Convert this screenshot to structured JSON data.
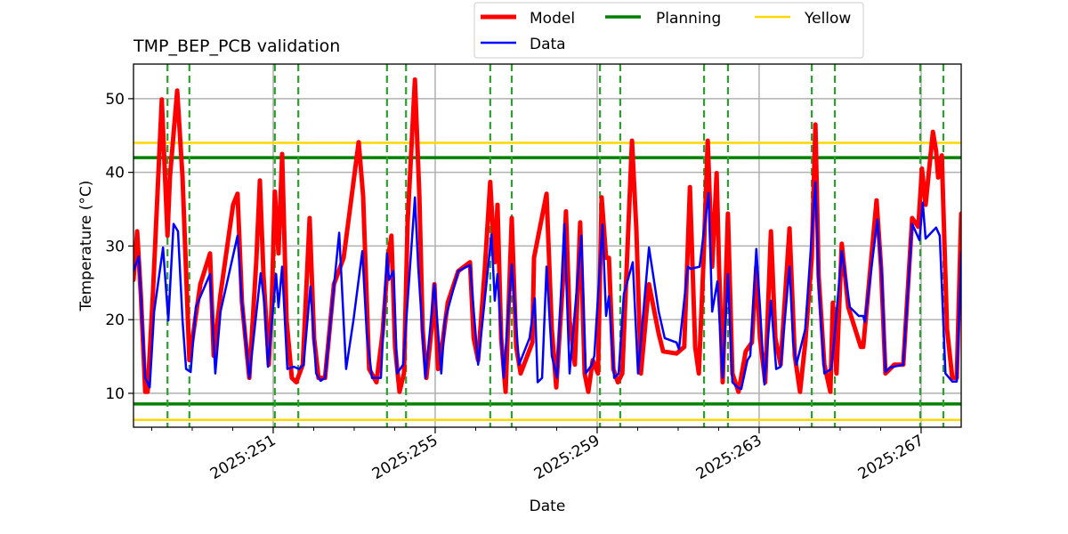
{
  "chart_data": {
    "type": "line",
    "title": "TMP_BEP_PCB validation",
    "xlabel": "Date",
    "ylabel": "Temperature (°C)",
    "xlim": [
      247.55,
      267.99
    ],
    "ylim": [
      5.4,
      54.7
    ],
    "x_major_ticks": [
      251,
      255,
      259,
      263,
      267
    ],
    "x_tick_labels": [
      "2025:251",
      "2025:255",
      "2025:259",
      "2025:263",
      "2025:267"
    ],
    "x_minor_step": 1,
    "y_ticks": [
      10,
      20,
      30,
      40,
      50
    ],
    "y_tick_labels": [
      "10",
      "20",
      "30",
      "40",
      "50"
    ],
    "grid": true,
    "legend": {
      "placement": "top-center-outside",
      "entries": [
        {
          "label": "Model",
          "color": "#ff0000"
        },
        {
          "label": "Planning",
          "color": "#008000"
        },
        {
          "label": "Yellow",
          "color": "#ffd700"
        },
        {
          "label": "Data",
          "color": "#0000ff"
        }
      ]
    },
    "hlines": [
      {
        "name": "Yellow",
        "y": 44.0,
        "color": "#ffd700"
      },
      {
        "name": "Yellow",
        "y": 6.4,
        "color": "#ffd700"
      },
      {
        "name": "Planning",
        "y": 42.0,
        "color": "#008000"
      },
      {
        "name": "Planning",
        "y": 8.55,
        "color": "#008000"
      }
    ],
    "vlines_dashed": {
      "color": "#2ca02c",
      "x": [
        248.39,
        248.93,
        251.04,
        251.62,
        253.81,
        254.28,
        256.36,
        256.89,
        259.07,
        259.57,
        261.64,
        262.23,
        264.3,
        264.87,
        266.98,
        267.55
      ]
    },
    "series": [
      {
        "name": "Model",
        "color": "#ff0000",
        "points": [
          [
            247.55,
            25.4
          ],
          [
            247.64,
            32.0
          ],
          [
            247.73,
            23.5
          ],
          [
            247.84,
            10.2
          ],
          [
            247.9,
            10.2
          ],
          [
            248.03,
            23.5
          ],
          [
            248.25,
            49.9
          ],
          [
            248.39,
            31.4
          ],
          [
            248.45,
            39.3
          ],
          [
            248.63,
            51.1
          ],
          [
            248.76,
            39.3
          ],
          [
            248.93,
            14.5
          ],
          [
            249.2,
            24.8
          ],
          [
            249.44,
            29.0
          ],
          [
            249.53,
            15.1
          ],
          [
            249.7,
            23.5
          ],
          [
            250.01,
            35.6
          ],
          [
            250.12,
            37.1
          ],
          [
            250.23,
            22.3
          ],
          [
            250.41,
            12.1
          ],
          [
            250.58,
            27.8
          ],
          [
            250.67,
            38.9
          ],
          [
            250.76,
            26.0
          ],
          [
            250.89,
            13.9
          ],
          [
            250.96,
            21.7
          ],
          [
            251.04,
            37.4
          ],
          [
            251.13,
            29.0
          ],
          [
            251.22,
            42.5
          ],
          [
            251.33,
            19.9
          ],
          [
            251.46,
            12.1
          ],
          [
            251.57,
            11.5
          ],
          [
            251.73,
            13.9
          ],
          [
            251.9,
            33.8
          ],
          [
            252.01,
            17.5
          ],
          [
            252.12,
            12.1
          ],
          [
            252.28,
            12.1
          ],
          [
            252.5,
            24.8
          ],
          [
            252.74,
            28.4
          ],
          [
            253.11,
            44.1
          ],
          [
            253.22,
            36.8
          ],
          [
            253.37,
            13.3
          ],
          [
            253.55,
            11.5
          ],
          [
            253.7,
            18.1
          ],
          [
            253.84,
            28.6
          ],
          [
            253.92,
            31.4
          ],
          [
            254.01,
            16.3
          ],
          [
            254.12,
            10.2
          ],
          [
            254.23,
            12.7
          ],
          [
            254.32,
            33.2
          ],
          [
            254.5,
            52.6
          ],
          [
            254.61,
            36.8
          ],
          [
            254.69,
            18.7
          ],
          [
            254.78,
            12.1
          ],
          [
            254.91,
            18.7
          ],
          [
            254.98,
            24.8
          ],
          [
            255.07,
            13.3
          ],
          [
            255.18,
            16.9
          ],
          [
            255.31,
            22.3
          ],
          [
            255.57,
            26.6
          ],
          [
            255.86,
            27.8
          ],
          [
            255.95,
            17.5
          ],
          [
            256.06,
            14.5
          ],
          [
            256.23,
            27.2
          ],
          [
            256.36,
            38.7
          ],
          [
            256.47,
            27.8
          ],
          [
            256.54,
            35.6
          ],
          [
            256.63,
            17.5
          ],
          [
            256.74,
            10.2
          ],
          [
            256.89,
            33.8
          ],
          [
            257.0,
            16.3
          ],
          [
            257.11,
            12.7
          ],
          [
            257.4,
            16.9
          ],
          [
            257.44,
            28.4
          ],
          [
            257.75,
            37.1
          ],
          [
            257.88,
            18.7
          ],
          [
            257.99,
            10.8
          ],
          [
            258.17,
            26.6
          ],
          [
            258.23,
            34.7
          ],
          [
            258.32,
            19.9
          ],
          [
            258.45,
            13.9
          ],
          [
            258.58,
            33.2
          ],
          [
            258.69,
            12.7
          ],
          [
            258.78,
            10.2
          ],
          [
            258.89,
            14.5
          ],
          [
            259.02,
            12.7
          ],
          [
            259.11,
            36.6
          ],
          [
            259.22,
            28.4
          ],
          [
            259.29,
            28.4
          ],
          [
            259.4,
            13.3
          ],
          [
            259.51,
            11.5
          ],
          [
            259.62,
            12.7
          ],
          [
            259.86,
            44.3
          ],
          [
            259.97,
            32.0
          ],
          [
            260.08,
            12.7
          ],
          [
            260.28,
            24.8
          ],
          [
            260.52,
            18.1
          ],
          [
            260.63,
            15.7
          ],
          [
            260.96,
            15.4
          ],
          [
            261.15,
            16.3
          ],
          [
            261.29,
            38.0
          ],
          [
            261.42,
            16.3
          ],
          [
            261.51,
            12.7
          ],
          [
            261.62,
            27.2
          ],
          [
            261.73,
            44.3
          ],
          [
            261.84,
            27.2
          ],
          [
            261.95,
            39.9
          ],
          [
            262.01,
            27.2
          ],
          [
            262.1,
            11.5
          ],
          [
            262.23,
            34.4
          ],
          [
            262.34,
            12.7
          ],
          [
            262.49,
            10.2
          ],
          [
            262.67,
            15.7
          ],
          [
            262.82,
            16.9
          ],
          [
            262.93,
            27.2
          ],
          [
            263.02,
            17.5
          ],
          [
            263.15,
            11.5
          ],
          [
            263.29,
            32.0
          ],
          [
            263.4,
            17.5
          ],
          [
            263.53,
            13.9
          ],
          [
            263.75,
            32.4
          ],
          [
            263.88,
            15.1
          ],
          [
            264.01,
            10.2
          ],
          [
            264.14,
            16.9
          ],
          [
            264.3,
            28.4
          ],
          [
            264.39,
            46.5
          ],
          [
            264.47,
            26.0
          ],
          [
            264.61,
            13.9
          ],
          [
            264.76,
            10.2
          ],
          [
            264.82,
            22.3
          ],
          [
            264.91,
            12.7
          ],
          [
            265.04,
            30.3
          ],
          [
            265.2,
            21.7
          ],
          [
            265.51,
            16.3
          ],
          [
            265.57,
            16.3
          ],
          [
            265.9,
            36.2
          ],
          [
            266.01,
            27.2
          ],
          [
            266.12,
            12.7
          ],
          [
            266.34,
            13.9
          ],
          [
            266.56,
            13.9
          ],
          [
            266.78,
            33.8
          ],
          [
            266.93,
            32.6
          ],
          [
            267.02,
            40.5
          ],
          [
            267.11,
            35.6
          ],
          [
            267.29,
            45.5
          ],
          [
            267.37,
            42.9
          ],
          [
            267.42,
            39.3
          ],
          [
            267.51,
            42.3
          ],
          [
            267.64,
            18.7
          ],
          [
            267.77,
            12.1
          ],
          [
            267.88,
            12.1
          ],
          [
            267.99,
            34.4
          ]
        ]
      },
      {
        "name": "Data",
        "color": "#0000ff",
        "points": [
          [
            247.55,
            26.6
          ],
          [
            247.68,
            28.6
          ],
          [
            247.84,
            12.1
          ],
          [
            247.95,
            10.8
          ],
          [
            248.06,
            21.1
          ],
          [
            248.28,
            29.8
          ],
          [
            248.41,
            19.9
          ],
          [
            248.54,
            33.0
          ],
          [
            248.65,
            32.0
          ],
          [
            248.76,
            19.9
          ],
          [
            248.85,
            13.3
          ],
          [
            248.96,
            12.9
          ],
          [
            249.09,
            21.7
          ],
          [
            249.44,
            26.2
          ],
          [
            249.57,
            12.7
          ],
          [
            249.7,
            21.1
          ],
          [
            250.12,
            31.4
          ],
          [
            250.23,
            22.3
          ],
          [
            250.41,
            12.1
          ],
          [
            250.69,
            26.3
          ],
          [
            250.78,
            22.3
          ],
          [
            250.87,
            13.6
          ],
          [
            251.07,
            26.2
          ],
          [
            251.13,
            21.7
          ],
          [
            251.22,
            27.2
          ],
          [
            251.35,
            13.3
          ],
          [
            251.51,
            13.6
          ],
          [
            251.64,
            13.3
          ],
          [
            251.75,
            13.9
          ],
          [
            251.92,
            24.5
          ],
          [
            252.06,
            12.7
          ],
          [
            252.17,
            11.7
          ],
          [
            252.28,
            12.1
          ],
          [
            252.63,
            31.8
          ],
          [
            252.74,
            19.9
          ],
          [
            252.8,
            13.3
          ],
          [
            252.98,
            19.9
          ],
          [
            253.2,
            29.3
          ],
          [
            253.31,
            18.1
          ],
          [
            253.44,
            12.1
          ],
          [
            253.66,
            12.1
          ],
          [
            253.81,
            29.0
          ],
          [
            253.86,
            25.4
          ],
          [
            253.97,
            26.6
          ],
          [
            254.06,
            12.7
          ],
          [
            254.21,
            13.9
          ],
          [
            254.5,
            36.6
          ],
          [
            254.58,
            27.2
          ],
          [
            254.76,
            12.1
          ],
          [
            254.98,
            24.8
          ],
          [
            255.15,
            12.7
          ],
          [
            255.24,
            19.9
          ],
          [
            255.57,
            26.6
          ],
          [
            255.86,
            27.4
          ],
          [
            256.06,
            13.9
          ],
          [
            256.39,
            31.6
          ],
          [
            256.47,
            22.6
          ],
          [
            256.54,
            26.2
          ],
          [
            256.69,
            12.1
          ],
          [
            256.89,
            27.5
          ],
          [
            257.07,
            13.9
          ],
          [
            257.33,
            17.5
          ],
          [
            257.46,
            22.9
          ],
          [
            257.53,
            11.5
          ],
          [
            257.64,
            12.1
          ],
          [
            257.75,
            27.2
          ],
          [
            257.88,
            15.1
          ],
          [
            258.01,
            12.1
          ],
          [
            258.19,
            33.0
          ],
          [
            258.32,
            12.7
          ],
          [
            258.61,
            31.4
          ],
          [
            258.72,
            12.7
          ],
          [
            258.87,
            13.9
          ],
          [
            258.93,
            15.1
          ],
          [
            259.13,
            32.9
          ],
          [
            259.22,
            20.5
          ],
          [
            259.29,
            23.2
          ],
          [
            259.42,
            12.1
          ],
          [
            259.53,
            12.7
          ],
          [
            259.66,
            23.5
          ],
          [
            259.88,
            27.8
          ],
          [
            260.01,
            12.7
          ],
          [
            260.28,
            29.8
          ],
          [
            260.52,
            21.1
          ],
          [
            260.67,
            17.5
          ],
          [
            260.96,
            16.9
          ],
          [
            261.02,
            16.0
          ],
          [
            261.24,
            27.2
          ],
          [
            261.31,
            26.9
          ],
          [
            261.53,
            27.2
          ],
          [
            261.75,
            37.2
          ],
          [
            261.84,
            21.1
          ],
          [
            261.97,
            25.2
          ],
          [
            262.1,
            12.1
          ],
          [
            262.23,
            26.2
          ],
          [
            262.34,
            11.5
          ],
          [
            262.47,
            10.8
          ],
          [
            262.56,
            10.6
          ],
          [
            262.71,
            14.5
          ],
          [
            262.78,
            15.1
          ],
          [
            262.93,
            29.6
          ],
          [
            263.02,
            21.7
          ],
          [
            263.13,
            11.2
          ],
          [
            263.29,
            22.6
          ],
          [
            263.42,
            13.3
          ],
          [
            263.53,
            13.6
          ],
          [
            263.75,
            27.2
          ],
          [
            263.84,
            16.9
          ],
          [
            263.92,
            13.9
          ],
          [
            264.14,
            18.7
          ],
          [
            264.39,
            38.7
          ],
          [
            264.47,
            24.8
          ],
          [
            264.61,
            12.7
          ],
          [
            264.78,
            13.3
          ],
          [
            264.85,
            16.9
          ],
          [
            265.04,
            29.3
          ],
          [
            265.24,
            21.7
          ],
          [
            265.46,
            20.5
          ],
          [
            265.57,
            20.5
          ],
          [
            265.61,
            19.7
          ],
          [
            265.92,
            33.6
          ],
          [
            266.03,
            26.0
          ],
          [
            266.12,
            12.9
          ],
          [
            266.23,
            13.5
          ],
          [
            266.56,
            13.9
          ],
          [
            266.78,
            33.0
          ],
          [
            266.96,
            30.8
          ],
          [
            267.04,
            35.9
          ],
          [
            267.11,
            31.0
          ],
          [
            267.37,
            32.5
          ],
          [
            267.46,
            31.4
          ],
          [
            267.6,
            12.7
          ],
          [
            267.77,
            11.6
          ],
          [
            267.88,
            11.6
          ],
          [
            267.99,
            29.2
          ]
        ]
      }
    ]
  }
}
